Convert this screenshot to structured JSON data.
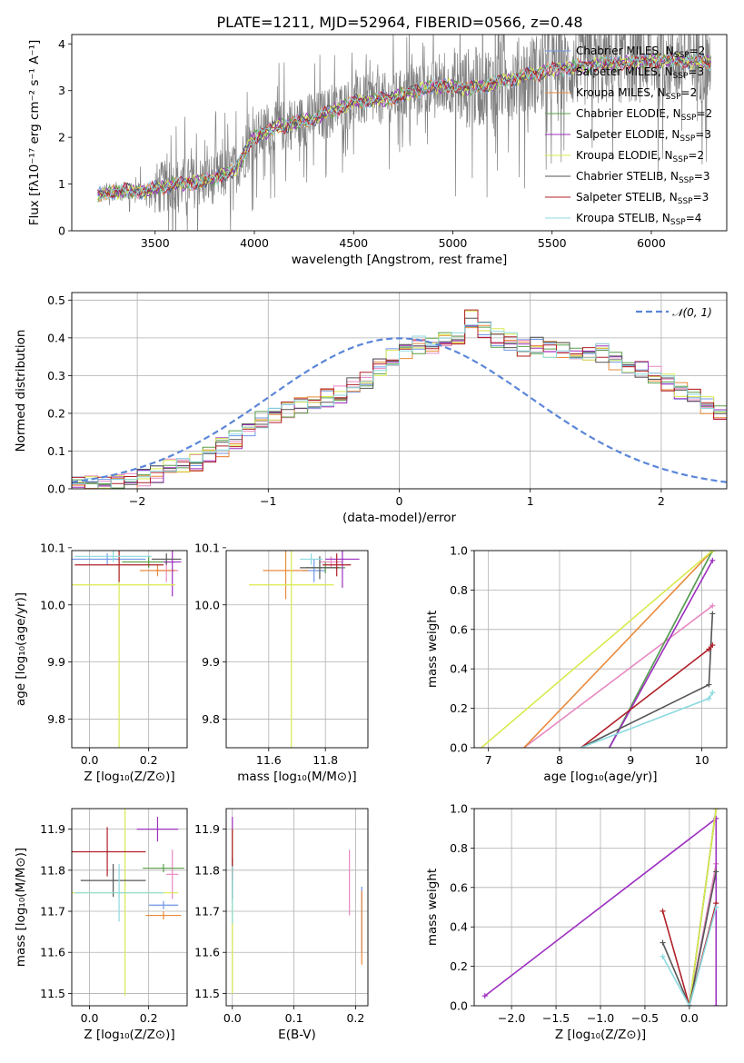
{
  "figure": {
    "title": "PLATE=1211, MJD=52964, FIBERID=0566, z=0.48"
  },
  "series_colors": [
    "#6f96e6",
    "#e888c2",
    "#e98a3a",
    "#5a9f4a",
    "#9d2fc0",
    "#d9ea4f",
    "#555555",
    "#b0202a",
    "#8cdadf"
  ],
  "chart_data": [
    {
      "id": "spectrum",
      "type": "line",
      "title": "PLATE=1211, MJD=52964, FIBERID=0566, z=0.48",
      "xlabel": "wavelength [Angstrom, rest frame]",
      "ylabel": "Flux [fλ10⁻¹⁷ erg cm⁻² s⁻¹ A⁻¹]",
      "xlim": [
        3080,
        6380
      ],
      "ylim": [
        0,
        4.2
      ],
      "xticks": [
        3500,
        4000,
        4500,
        5000,
        5500,
        6000
      ],
      "yticks": [
        0,
        1,
        2,
        3,
        4
      ],
      "grid": false,
      "legend_position": "upper right",
      "x_start": 3210,
      "x_end": 6300,
      "data_color": "#808080",
      "continuum": {
        "x": [
          3210,
          3300,
          3450,
          3600,
          3750,
          3900,
          4000,
          4100,
          4300,
          4500,
          4700,
          4900,
          5100,
          5300,
          5500,
          5700,
          5900,
          6100,
          6300
        ],
        "y": [
          0.75,
          0.85,
          0.85,
          1.0,
          1.05,
          1.3,
          2.0,
          2.2,
          2.4,
          2.75,
          2.85,
          3.1,
          3.05,
          3.25,
          3.45,
          3.55,
          3.6,
          3.65,
          3.6
        ]
      },
      "series": [
        {
          "name": "Chabrier MILES, N$_{SSP}$=2",
          "label_main": "Chabrier MILES, N",
          "label_sub": "SSP",
          "label_end": "=2"
        },
        {
          "name": "Salpeter MILES, N$_{SSP}$=3",
          "label_main": "Salpeter MILES, N",
          "label_sub": "SSP",
          "label_end": "=3"
        },
        {
          "name": "Kroupa MILES, N$_{SSP}$=2",
          "label_main": "Kroupa MILES, N",
          "label_sub": "SSP",
          "label_end": "=2"
        },
        {
          "name": "Chabrier ELODIE, N$_{SSP}$=2",
          "label_main": "Chabrier ELODIE, N",
          "label_sub": "SSP",
          "label_end": "=2"
        },
        {
          "name": "Salpeter ELODIE, N$_{SSP}$=3",
          "label_main": "Salpeter ELODIE, N",
          "label_sub": "SSP",
          "label_end": "=3"
        },
        {
          "name": "Kroupa ELODIE, N$_{SSP}$=2",
          "label_main": "Kroupa ELODIE, N",
          "label_sub": "SSP",
          "label_end": "=2"
        },
        {
          "name": "Chabrier STELIB, N$_{SSP}$=3",
          "label_main": "Chabrier STELIB, N",
          "label_sub": "SSP",
          "label_end": "=3"
        },
        {
          "name": "Salpeter STELIB, N$_{SSP}$=3",
          "label_main": "Salpeter STELIB, N",
          "label_sub": "SSP",
          "label_end": "=3"
        },
        {
          "name": "Kroupa STELIB, N$_{SSP}$=4",
          "label_main": "Kroupa STELIB, N",
          "label_sub": "SSP",
          "label_end": "=4"
        }
      ]
    },
    {
      "id": "residuals",
      "type": "line",
      "xlabel": "(data-model)/error",
      "ylabel": "Normed distribution",
      "xlim": [
        -2.5,
        2.5
      ],
      "ylim": [
        0,
        0.52
      ],
      "xticks": [
        -2,
        -1,
        0,
        1,
        2
      ],
      "yticks": [
        0.0,
        0.1,
        0.2,
        0.3,
        0.4,
        0.5
      ],
      "grid": true,
      "legend_position": "upper right",
      "legend_label": "𝒩(0, 1)",
      "normal_color": "#5b86d8",
      "histogram_profile": {
        "bin_start": -2.5,
        "bin_width": 0.1,
        "values": [
          0.01,
          0.01,
          0.01,
          0.015,
          0.02,
          0.03,
          0.04,
          0.06,
          0.06,
          0.07,
          0.09,
          0.11,
          0.13,
          0.15,
          0.18,
          0.2,
          0.21,
          0.22,
          0.23,
          0.24,
          0.25,
          0.27,
          0.29,
          0.32,
          0.35,
          0.37,
          0.38,
          0.38,
          0.39,
          0.4,
          0.45,
          0.42,
          0.4,
          0.39,
          0.37,
          0.38,
          0.37,
          0.37,
          0.36,
          0.35,
          0.36,
          0.34,
          0.33,
          0.32,
          0.3,
          0.28,
          0.26,
          0.24,
          0.22,
          0.2
        ]
      }
    },
    {
      "id": "age_vs_Z",
      "type": "scatter",
      "xlabel": "Z [log₁₀(Z/Z⊙)]",
      "ylabel": "age  [log₁₀(age/yr)]",
      "xlim": [
        -0.06,
        0.33
      ],
      "ylim": [
        9.75,
        10.095
      ],
      "xticks": [
        0.0,
        0.2
      ],
      "yticks": [
        9.8,
        9.9,
        10.0,
        10.1
      ],
      "grid": true,
      "points": [
        {
          "x": 0.06,
          "y": 10.08,
          "xerr": 0.13,
          "yerr": 0.01,
          "series": 0
        },
        {
          "x": 0.26,
          "y": 10.06,
          "xerr": 0.04,
          "yerr": 0.02,
          "series": 1
        },
        {
          "x": 0.23,
          "y": 10.06,
          "xerr": 0.06,
          "yerr": 0.01,
          "series": 2
        },
        {
          "x": 0.2,
          "y": 10.075,
          "xerr": 0.09,
          "yerr": 0.01,
          "series": 3
        },
        {
          "x": 0.28,
          "y": 10.075,
          "xerr": 0.03,
          "yerr": 0.06,
          "series": 4
        },
        {
          "x": 0.1,
          "y": 10.035,
          "xerr": 0.19,
          "yerr": 0.3,
          "series": 5
        },
        {
          "x": 0.26,
          "y": 10.08,
          "xerr": 0.05,
          "yerr": 0.01,
          "series": 6
        },
        {
          "x": 0.1,
          "y": 10.07,
          "xerr": 0.15,
          "yerr": 0.03,
          "series": 7
        },
        {
          "x": 0.08,
          "y": 10.085,
          "xerr": 0.13,
          "yerr": 0.01,
          "series": 8
        }
      ]
    },
    {
      "id": "age_vs_mass",
      "type": "scatter",
      "xlabel": "mass [log₁₀(M/M⊙)]",
      "ylabel": "",
      "xlim": [
        11.45,
        11.95
      ],
      "ylim": [
        9.75,
        10.095
      ],
      "xticks": [
        11.6,
        11.8
      ],
      "yticks": [
        9.8,
        9.9,
        10.0,
        10.1
      ],
      "grid": true,
      "points": [
        {
          "x": 11.76,
          "y": 10.06,
          "xerr": 0.04,
          "yerr": 0.02,
          "series": 0
        },
        {
          "x": 11.82,
          "y": 10.075,
          "xerr": 0.04,
          "yerr": 0.01,
          "series": 1
        },
        {
          "x": 11.66,
          "y": 10.06,
          "xerr": 0.08,
          "yerr": 0.05,
          "series": 2
        },
        {
          "x": 11.8,
          "y": 10.065,
          "xerr": 0.07,
          "yerr": 0.01,
          "series": 3
        },
        {
          "x": 11.86,
          "y": 10.08,
          "xerr": 0.06,
          "yerr": 0.05,
          "series": 4
        },
        {
          "x": 11.68,
          "y": 10.035,
          "xerr": 0.15,
          "yerr": 0.3,
          "series": 5
        },
        {
          "x": 11.78,
          "y": 10.065,
          "xerr": 0.07,
          "yerr": 0.02,
          "series": 6
        },
        {
          "x": 11.84,
          "y": 10.07,
          "xerr": 0.05,
          "yerr": 0.02,
          "series": 7
        },
        {
          "x": 11.75,
          "y": 10.08,
          "xerr": 0.04,
          "yerr": 0.01,
          "series": 8
        }
      ]
    },
    {
      "id": "mass_weight_vs_age",
      "type": "line",
      "xlabel": "age  [log₁₀(age/yr)]",
      "ylabel": "mass weight",
      "xlim": [
        6.8,
        10.35
      ],
      "ylim": [
        0,
        1
      ],
      "xticks": [
        7,
        8,
        9,
        10
      ],
      "yticks": [
        0.0,
        0.2,
        0.4,
        0.6,
        0.8,
        1.0
      ],
      "grid": true,
      "series": [
        {
          "x": [
            8.7,
            10.15
          ],
          "y": [
            0.0,
            1.0
          ],
          "series": 0
        },
        {
          "x": [
            7.5,
            10.15
          ],
          "y": [
            0.0,
            0.72
          ],
          "series": 1
        },
        {
          "x": [
            7.5,
            10.15
          ],
          "y": [
            0.0,
            1.0
          ],
          "series": 2
        },
        {
          "x": [
            8.7,
            10.15
          ],
          "y": [
            0.0,
            1.0
          ],
          "series": 3
        },
        {
          "x": [
            8.7,
            10.15
          ],
          "y": [
            0.0,
            0.95
          ],
          "series": 4
        },
        {
          "x": [
            6.9,
            10.15
          ],
          "y": [
            0.0,
            1.0
          ],
          "series": 5
        },
        {
          "x": [
            8.3,
            10.1,
            10.15
          ],
          "y": [
            0.0,
            0.32,
            0.68
          ],
          "series": 6
        },
        {
          "x": [
            8.3,
            10.1,
            10.15
          ],
          "y": [
            0.0,
            0.5,
            0.52
          ],
          "series": 7
        },
        {
          "x": [
            8.3,
            10.1,
            10.15
          ],
          "y": [
            0.0,
            0.25,
            0.28
          ],
          "series": 8
        }
      ]
    },
    {
      "id": "mass_vs_Z",
      "type": "scatter",
      "xlabel": "Z [log₁₀(Z/Z⊙)]",
      "ylabel": "mass [log₁₀(M/M⊙)]",
      "xlim": [
        -0.06,
        0.33
      ],
      "ylim": [
        11.47,
        11.95
      ],
      "xticks": [
        0.0,
        0.2
      ],
      "yticks": [
        11.5,
        11.6,
        11.7,
        11.8,
        11.9
      ],
      "grid": true,
      "points": [
        {
          "x": 0.25,
          "y": 11.715,
          "xerr": 0.05,
          "yerr": 0.01,
          "series": 0
        },
        {
          "x": 0.28,
          "y": 11.79,
          "xerr": 0.02,
          "yerr": 0.06,
          "series": 1
        },
        {
          "x": 0.25,
          "y": 11.69,
          "xerr": 0.06,
          "yerr": 0.01,
          "series": 2
        },
        {
          "x": 0.25,
          "y": 11.805,
          "xerr": 0.07,
          "yerr": 0.01,
          "series": 3
        },
        {
          "x": 0.23,
          "y": 11.9,
          "xerr": 0.07,
          "yerr": 0.03,
          "series": 4
        },
        {
          "x": 0.12,
          "y": 11.745,
          "xerr": 0.18,
          "yerr": 0.25,
          "series": 5
        },
        {
          "x": 0.08,
          "y": 11.775,
          "xerr": 0.11,
          "yerr": 0.04,
          "series": 6
        },
        {
          "x": 0.06,
          "y": 11.845,
          "xerr": 0.13,
          "yerr": 0.06,
          "series": 7
        },
        {
          "x": 0.1,
          "y": 11.745,
          "xerr": 0.15,
          "yerr": 0.07,
          "series": 8
        }
      ]
    },
    {
      "id": "mass_vs_EBV",
      "type": "scatter",
      "xlabel": "E(B-V)",
      "ylabel": "",
      "xlim": [
        -0.01,
        0.22
      ],
      "ylim": [
        11.47,
        11.95
      ],
      "xticks": [
        0.0,
        0.1,
        0.2
      ],
      "yticks": [
        11.5,
        11.6,
        11.7,
        11.8,
        11.9
      ],
      "grid": true,
      "points": [
        {
          "x": 0.21,
          "y": 11.68,
          "xerr": 0.0,
          "yerr": 0.08,
          "series": 0
        },
        {
          "x": 0.19,
          "y": 11.77,
          "xerr": 0.0,
          "yerr": 0.08,
          "series": 1
        },
        {
          "x": 0.21,
          "y": 11.66,
          "xerr": 0.0,
          "yerr": 0.09,
          "series": 2
        },
        {
          "x": 0.0,
          "y": 11.8,
          "xerr": 0.0,
          "yerr": 0.03,
          "series": 3
        },
        {
          "x": 0.0,
          "y": 11.85,
          "xerr": 0.0,
          "yerr": 0.08,
          "series": 4
        },
        {
          "x": 0.0,
          "y": 11.7,
          "xerr": 0.0,
          "yerr": 0.2,
          "series": 5
        },
        {
          "x": 0.0,
          "y": 11.78,
          "xerr": 0.0,
          "yerr": 0.05,
          "series": 6
        },
        {
          "x": 0.0,
          "y": 11.84,
          "xerr": 0.0,
          "yerr": 0.06,
          "series": 7
        },
        {
          "x": 0.0,
          "y": 11.74,
          "xerr": 0.0,
          "yerr": 0.07,
          "series": 8
        }
      ]
    },
    {
      "id": "mass_weight_vs_Z",
      "type": "line",
      "xlabel": "Z [log₁₀(Z/Z⊙)]",
      "ylabel": "mass weight",
      "xlim": [
        -2.42,
        0.42
      ],
      "ylim": [
        0,
        1
      ],
      "xticks": [
        -2.0,
        -1.5,
        -1.0,
        -0.5,
        0.0
      ],
      "yticks": [
        0.0,
        0.2,
        0.4,
        0.6,
        0.8,
        1.0
      ],
      "grid": true,
      "series": [
        {
          "x": [
            0.0,
            0.3
          ],
          "y": [
            0.0,
            1.0
          ],
          "series": 0
        },
        {
          "x": [
            0.0,
            0.3
          ],
          "y": [
            0.0,
            0.72
          ],
          "series": 1
        },
        {
          "x": [
            0.0,
            0.3
          ],
          "y": [
            0.0,
            1.0
          ],
          "series": 2
        },
        {
          "x": [
            0.0,
            0.3
          ],
          "y": [
            0.0,
            1.0
          ],
          "series": 3
        },
        {
          "x": [
            -2.3,
            0.3,
            0.3
          ],
          "y": [
            0.05,
            0.95,
            0.0
          ],
          "series": 4
        },
        {
          "x": [
            0.0,
            0.3
          ],
          "y": [
            0.0,
            1.0
          ],
          "series": 5
        },
        {
          "x": [
            -0.3,
            0.0,
            0.3
          ],
          "y": [
            0.32,
            0.0,
            0.68
          ],
          "series": 6
        },
        {
          "x": [
            -0.3,
            0.0,
            0.3
          ],
          "y": [
            0.48,
            0.0,
            0.52
          ],
          "series": 7
        },
        {
          "x": [
            -0.3,
            0.0,
            0.3
          ],
          "y": [
            0.25,
            0.0,
            0.5
          ],
          "series": 8
        }
      ]
    }
  ]
}
